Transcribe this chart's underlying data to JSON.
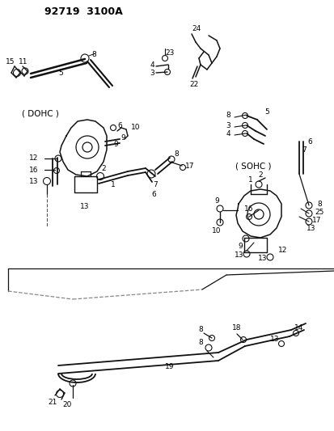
{
  "title": "92719  3100A",
  "bg_color": "#ffffff",
  "line_color": "#111111",
  "text_color": "#000000",
  "fig_width": 4.14,
  "fig_height": 5.33,
  "dpi": 100,
  "label_dohc": "( DOHC )",
  "label_sohc": "( SOHC )"
}
